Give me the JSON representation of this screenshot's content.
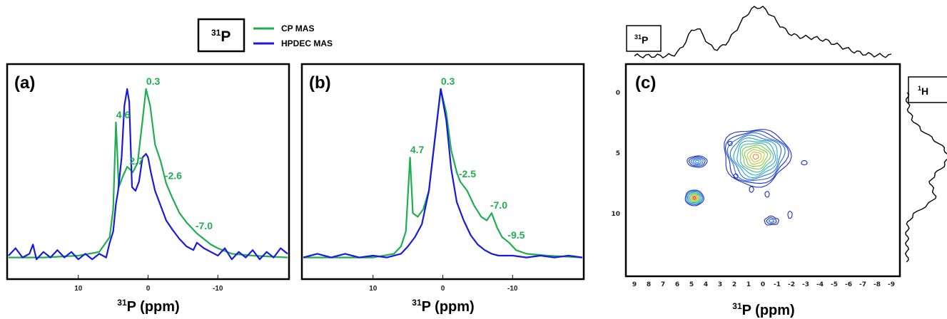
{
  "legend": {
    "nucleus_main": "31",
    "nucleus_sym": "P",
    "entries": [
      {
        "name": "CP MAS",
        "color": "#1fae4f"
      },
      {
        "name": "HPDEC MAS",
        "color": "#1a1adb"
      }
    ]
  },
  "colors": {
    "cp": "#1fae4f",
    "hpdec": "#1a1adb",
    "axis": "#000000"
  },
  "chart_data": [
    {
      "type": "line",
      "panel_label": "(a)",
      "xlabel_sup": "31",
      "xlabel_main": "P (ppm)",
      "xlim": [
        20,
        -20
      ],
      "x_reversed": true,
      "x_ticks": [
        10,
        0,
        -10
      ],
      "x_tick_labels": [
        "10",
        "0",
        "-10"
      ],
      "series": [
        {
          "name": "CP MAS",
          "color": "#1fae4f",
          "points": [
            [
              20,
              0.04
            ],
            [
              15,
              0.04
            ],
            [
              10,
              0.05
            ],
            [
              7,
              0.07
            ],
            [
              5.5,
              0.15
            ],
            [
              5,
              0.3
            ],
            [
              4.6,
              0.77
            ],
            [
              4.2,
              0.42
            ],
            [
              3.6,
              0.48
            ],
            [
              3.0,
              0.53
            ],
            [
              2.7,
              0.52
            ],
            [
              2.2,
              0.5
            ],
            [
              1.5,
              0.55
            ],
            [
              0.8,
              0.78
            ],
            [
              0.3,
              0.95
            ],
            [
              -0.3,
              0.86
            ],
            [
              -1,
              0.65
            ],
            [
              -1.8,
              0.56
            ],
            [
              -2.6,
              0.44
            ],
            [
              -3.5,
              0.36
            ],
            [
              -4.5,
              0.28
            ],
            [
              -5.5,
              0.23
            ],
            [
              -6.5,
              0.19
            ],
            [
              -7.0,
              0.17
            ],
            [
              -8,
              0.14
            ],
            [
              -9,
              0.11
            ],
            [
              -10,
              0.09
            ],
            [
              -12,
              0.06
            ],
            [
              -15,
              0.05
            ],
            [
              -20,
              0.04
            ]
          ]
        },
        {
          "name": "HPDEC MAS",
          "color": "#1a1adb",
          "points": [
            [
              20,
              0.05
            ],
            [
              19,
              0.09
            ],
            [
              18,
              0.04
            ],
            [
              17,
              0.06
            ],
            [
              16.5,
              0.11
            ],
            [
              16,
              0.03
            ],
            [
              15,
              0.07
            ],
            [
              14,
              0.04
            ],
            [
              13,
              0.08
            ],
            [
              12,
              0.04
            ],
            [
              11,
              0.07
            ],
            [
              10,
              0.03
            ],
            [
              9,
              0.06
            ],
            [
              8,
              0.03
            ],
            [
              7,
              0.06
            ],
            [
              6,
              0.04
            ],
            [
              5.5,
              0.12
            ],
            [
              5,
              0.18
            ],
            [
              4.6,
              0.33
            ],
            [
              4.3,
              0.4
            ],
            [
              3.8,
              0.58
            ],
            [
              3.4,
              0.86
            ],
            [
              3.0,
              0.95
            ],
            [
              2.7,
              0.88
            ],
            [
              2.3,
              0.42
            ],
            [
              1.8,
              0.4
            ],
            [
              1.3,
              0.45
            ],
            [
              0.8,
              0.58
            ],
            [
              0.3,
              0.6
            ],
            [
              0,
              0.58
            ],
            [
              -0.4,
              0.5
            ],
            [
              -1,
              0.4
            ],
            [
              -1.8,
              0.32
            ],
            [
              -2.6,
              0.24
            ],
            [
              -3.5,
              0.19
            ],
            [
              -4.5,
              0.14
            ],
            [
              -5.5,
              0.1
            ],
            [
              -6.5,
              0.08
            ],
            [
              -7,
              0.12
            ],
            [
              -8,
              0.09
            ],
            [
              -9,
              0.07
            ],
            [
              -10,
              0.05
            ],
            [
              -11,
              0.09
            ],
            [
              -12,
              0.03
            ],
            [
              -13,
              0.07
            ],
            [
              -14,
              0.04
            ],
            [
              -15,
              0.08
            ],
            [
              -16,
              0.03
            ],
            [
              -17,
              0.07
            ],
            [
              -18,
              0.04
            ],
            [
              -19,
              0.09
            ],
            [
              -20,
              0.06
            ]
          ]
        }
      ],
      "annotations": [
        {
          "text": "4.6",
          "x": 4.6,
          "y": 0.77
        },
        {
          "text": "0.3",
          "x": 0.3,
          "y": 0.95
        },
        {
          "text": "2.7",
          "x": 2.7,
          "y": 0.52
        },
        {
          "text": "-2.6",
          "x": -2.6,
          "y": 0.44
        },
        {
          "text": "-7.0",
          "x": -7.0,
          "y": 0.17
        }
      ]
    },
    {
      "type": "line",
      "panel_label": "(b)",
      "xlabel_sup": "31",
      "xlabel_main": "P (ppm)",
      "xlim": [
        20,
        -20
      ],
      "x_reversed": true,
      "x_ticks": [
        10,
        0,
        -10
      ],
      "x_tick_labels": [
        "10",
        "0",
        "-10"
      ],
      "series": [
        {
          "name": "CP MAS",
          "color": "#1fae4f",
          "points": [
            [
              20,
              0.04
            ],
            [
              15,
              0.04
            ],
            [
              10,
              0.04
            ],
            [
              7,
              0.06
            ],
            [
              6,
              0.1
            ],
            [
              5.3,
              0.18
            ],
            [
              4.7,
              0.58
            ],
            [
              4.3,
              0.28
            ],
            [
              3.6,
              0.26
            ],
            [
              2.8,
              0.3
            ],
            [
              2,
              0.4
            ],
            [
              1.2,
              0.66
            ],
            [
              0.3,
              0.95
            ],
            [
              -0.5,
              0.82
            ],
            [
              -1.2,
              0.62
            ],
            [
              -2,
              0.5
            ],
            [
              -2.5,
              0.45
            ],
            [
              -3.5,
              0.4
            ],
            [
              -4.5,
              0.32
            ],
            [
              -5.5,
              0.26
            ],
            [
              -6.3,
              0.24
            ],
            [
              -7.0,
              0.28
            ],
            [
              -7.8,
              0.2
            ],
            [
              -8.5,
              0.15
            ],
            [
              -9.5,
              0.12
            ],
            [
              -10.5,
              0.08
            ],
            [
              -12,
              0.06
            ],
            [
              -15,
              0.05
            ],
            [
              -20,
              0.04
            ]
          ]
        },
        {
          "name": "HPDEC MAS",
          "color": "#1a1adb",
          "points": [
            [
              20,
              0.04
            ],
            [
              18,
              0.06
            ],
            [
              16,
              0.04
            ],
            [
              14,
              0.06
            ],
            [
              12,
              0.04
            ],
            [
              10,
              0.05
            ],
            [
              8,
              0.04
            ],
            [
              6,
              0.06
            ],
            [
              5,
              0.1
            ],
            [
              4,
              0.15
            ],
            [
              3,
              0.22
            ],
            [
              2,
              0.4
            ],
            [
              1.2,
              0.66
            ],
            [
              0.3,
              0.95
            ],
            [
              -0.5,
              0.78
            ],
            [
              -1.2,
              0.52
            ],
            [
              -2,
              0.34
            ],
            [
              -3,
              0.24
            ],
            [
              -4,
              0.16
            ],
            [
              -5,
              0.11
            ],
            [
              -6,
              0.08
            ],
            [
              -7,
              0.06
            ],
            [
              -8,
              0.05
            ],
            [
              -10,
              0.05
            ],
            [
              -12,
              0.04
            ],
            [
              -14,
              0.05
            ],
            [
              -16,
              0.04
            ],
            [
              -18,
              0.05
            ],
            [
              -20,
              0.04
            ]
          ]
        }
      ],
      "annotations": [
        {
          "text": "0.3",
          "x": 0.3,
          "y": 0.95
        },
        {
          "text": "4.7",
          "x": 4.7,
          "y": 0.58
        },
        {
          "text": "-2.5",
          "x": -2.5,
          "y": 0.45
        },
        {
          "text": "-7.0",
          "x": -7.0,
          "y": 0.28
        },
        {
          "text": "-9.5",
          "x": -9.5,
          "y": 0.12
        }
      ]
    },
    {
      "type": "heatmap",
      "subtype": "2D HETCOR contour",
      "panel_label": "(c)",
      "xlabel_sup": "31",
      "xlabel_main": "P (ppm)",
      "top_projection_label_sup": "31",
      "top_projection_label_main": "P",
      "side_projection_label_sup": "1",
      "side_projection_label_main": "H",
      "xlim": [
        9,
        -9
      ],
      "ylim": [
        0,
        14
      ],
      "x_ticks": [
        9,
        8,
        7,
        6,
        5,
        4,
        3,
        2,
        1,
        0,
        -1,
        -2,
        -3,
        -4,
        -5,
        -6,
        -7,
        -8,
        -9
      ],
      "x_tick_labels": [
        "9",
        "8",
        "7",
        "6",
        "5",
        "4",
        "3",
        "2",
        "1",
        "0",
        "-1",
        "-2",
        "-3",
        "-4",
        "-5",
        "-6",
        "-7",
        "-8",
        "-9"
      ],
      "y_ticks": [
        0,
        5,
        10
      ],
      "y_tick_labels": [
        "0",
        "5",
        "10"
      ],
      "cross_peaks": [
        {
          "p31": 0.5,
          "h1": 5.3,
          "intensity": "high"
        },
        {
          "p31": 4.8,
          "h1": 8.7,
          "intensity": "high"
        },
        {
          "p31": 4.6,
          "h1": 5.7,
          "intensity": "medium"
        },
        {
          "p31": -0.6,
          "h1": 10.6,
          "intensity": "low"
        }
      ]
    }
  ]
}
